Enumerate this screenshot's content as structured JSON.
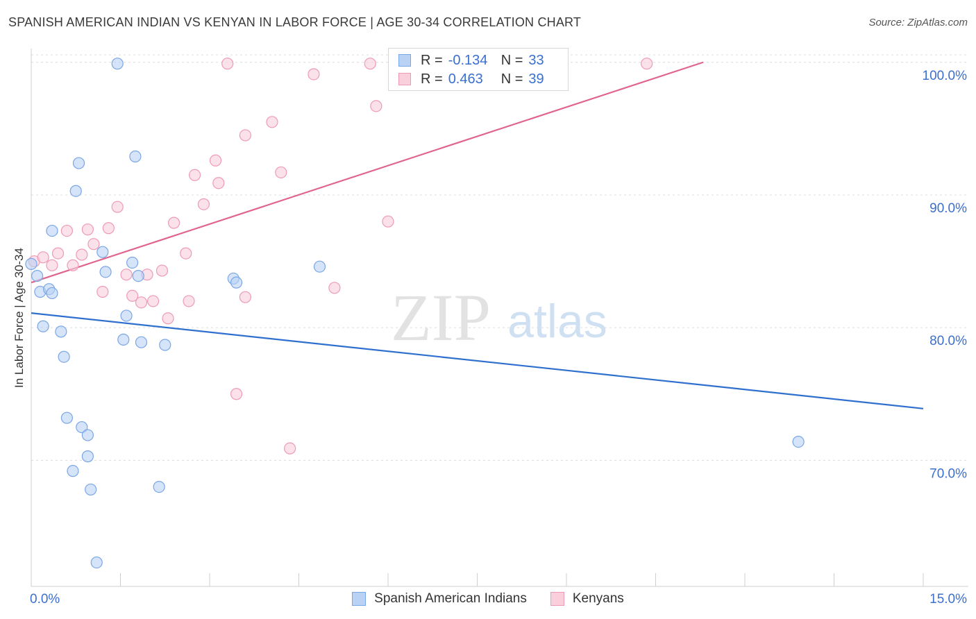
{
  "header": {
    "title": "SPANISH AMERICAN INDIAN VS KENYAN IN LABOR FORCE | AGE 30-34 CORRELATION CHART",
    "source": "Source: ZipAtlas.com"
  },
  "watermark": {
    "zip": "ZIP",
    "atlas": "atlas"
  },
  "legend": {
    "rows": [
      {
        "r_label": "R =",
        "r_value": "-0.134",
        "n_label": "N =",
        "n_value": "33",
        "fill": "#b9d2f3",
        "stroke": "#7aa6e6"
      },
      {
        "r_label": "R =",
        "r_value": "0.463",
        "n_label": "N =",
        "n_value": "39",
        "fill": "#f9cfdc",
        "stroke": "#ee9ab4"
      }
    ]
  },
  "colors": {
    "blue_line": "#2f6fce",
    "pink_line": "#e0648f",
    "tick_text": "#3a6fd0",
    "grid": "#dcdcdc"
  },
  "chart_data": {
    "type": "scatter",
    "title": "SPANISH AMERICAN INDIAN VS KENYAN IN LABOR FORCE | AGE 30-34 CORRELATION CHART",
    "xlabel": "",
    "ylabel": "In Labor Force | Age 30-34",
    "xlim": [
      0,
      15
    ],
    "ylim": [
      60.5,
      101.5
    ],
    "x_tick_labels": [
      {
        "value": 0,
        "label": "0.0%"
      },
      {
        "value": 15,
        "label": "15.0%"
      }
    ],
    "y_ticks": [
      {
        "value": 70,
        "label": "70.0%"
      },
      {
        "value": 80,
        "label": "80.0%"
      },
      {
        "value": 90,
        "label": "90.0%"
      },
      {
        "value": 100,
        "label": "100.0%"
      }
    ],
    "grid": true,
    "legend_position": "top-center",
    "series": [
      {
        "name": "Spanish American Indians",
        "color": "#b9d2f3",
        "stroke": "#7aa6e6",
        "trend": {
          "x": [
            0,
            15
          ],
          "y": [
            81.1,
            73.9
          ]
        },
        "points": [
          [
            0.0,
            84.8
          ],
          [
            0.1,
            83.9
          ],
          [
            0.15,
            82.7
          ],
          [
            0.3,
            82.9
          ],
          [
            0.35,
            82.6
          ],
          [
            0.2,
            80.1
          ],
          [
            0.5,
            79.7
          ],
          [
            0.55,
            77.8
          ],
          [
            0.35,
            87.3
          ],
          [
            0.8,
            92.4
          ],
          [
            0.75,
            90.3
          ],
          [
            1.45,
            99.9
          ],
          [
            1.75,
            92.9
          ],
          [
            1.2,
            85.7
          ],
          [
            1.25,
            84.2
          ],
          [
            1.7,
            84.9
          ],
          [
            1.8,
            83.9
          ],
          [
            1.6,
            80.9
          ],
          [
            1.55,
            79.1
          ],
          [
            1.85,
            78.9
          ],
          [
            2.25,
            78.7
          ],
          [
            3.4,
            83.7
          ],
          [
            3.45,
            83.4
          ],
          [
            4.85,
            84.6
          ],
          [
            0.6,
            73.2
          ],
          [
            0.85,
            72.5
          ],
          [
            0.95,
            71.9
          ],
          [
            0.95,
            70.3
          ],
          [
            0.7,
            69.2
          ],
          [
            1.0,
            67.8
          ],
          [
            2.15,
            68.0
          ],
          [
            1.1,
            62.3
          ],
          [
            12.9,
            71.4
          ]
        ]
      },
      {
        "name": "Kenyans",
        "color": "#f9cfdc",
        "stroke": "#ee9ab4",
        "trend": {
          "x": [
            0,
            11.3
          ],
          "y": [
            83.4,
            100.0
          ]
        },
        "points": [
          [
            0.05,
            85.0
          ],
          [
            0.2,
            85.3
          ],
          [
            0.35,
            84.7
          ],
          [
            0.45,
            85.6
          ],
          [
            0.6,
            87.3
          ],
          [
            0.7,
            84.7
          ],
          [
            0.85,
            85.5
          ],
          [
            0.95,
            87.4
          ],
          [
            1.05,
            86.3
          ],
          [
            1.3,
            87.5
          ],
          [
            1.45,
            89.1
          ],
          [
            1.2,
            82.7
          ],
          [
            1.6,
            84.0
          ],
          [
            1.7,
            82.4
          ],
          [
            1.85,
            81.9
          ],
          [
            1.95,
            84.0
          ],
          [
            2.05,
            82.0
          ],
          [
            2.2,
            84.3
          ],
          [
            2.3,
            80.7
          ],
          [
            2.4,
            87.9
          ],
          [
            2.6,
            85.6
          ],
          [
            2.65,
            82.0
          ],
          [
            2.75,
            91.5
          ],
          [
            2.9,
            89.3
          ],
          [
            3.1,
            92.6
          ],
          [
            3.15,
            90.9
          ],
          [
            3.3,
            99.9
          ],
          [
            3.6,
            94.5
          ],
          [
            3.6,
            82.3
          ],
          [
            3.45,
            75.0
          ],
          [
            4.05,
            95.5
          ],
          [
            4.2,
            91.7
          ],
          [
            4.35,
            70.9
          ],
          [
            4.75,
            99.1
          ],
          [
            5.1,
            83.0
          ],
          [
            5.7,
            99.9
          ],
          [
            5.8,
            96.7
          ],
          [
            6.0,
            88.0
          ],
          [
            10.35,
            99.9
          ]
        ]
      }
    ]
  }
}
